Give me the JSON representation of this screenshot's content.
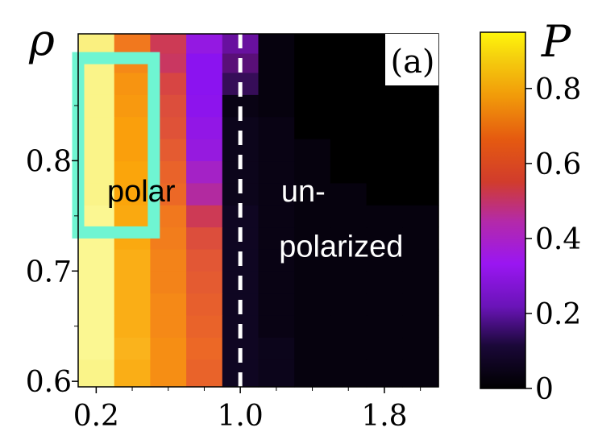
{
  "chart_data": {
    "type": "heatmap",
    "panel_label": "(a)",
    "ylabel": "ρ",
    "colorbar_label": "P",
    "x_ticks": [
      "0.2",
      "1.0",
      "1.8"
    ],
    "y_ticks": [
      "0.6",
      "0.7",
      "0.8"
    ],
    "colorbar_ticks": [
      "0",
      "0.2",
      "0.4",
      "0.6",
      "0.8"
    ],
    "x_tick_values": [
      0.2,
      1.0,
      1.8
    ],
    "y_tick_values": [
      0.6,
      0.7,
      0.8
    ],
    "colorbar_tick_values": [
      0,
      0.2,
      0.4,
      0.6,
      0.8
    ],
    "xlim": [
      0.1,
      2.1
    ],
    "ylim": [
      0.595,
      0.915
    ],
    "clim": [
      0,
      0.95
    ],
    "x_centers": [
      0.2,
      0.4,
      0.6,
      0.8,
      1.0,
      1.2,
      1.4,
      1.6,
      1.8,
      2.0
    ],
    "y_centers": [
      0.61,
      0.63,
      0.65,
      0.67,
      0.69,
      0.71,
      0.73,
      0.75,
      0.77,
      0.79,
      0.81,
      0.83,
      0.85,
      0.87,
      0.89,
      0.905
    ],
    "values": [
      [
        0.92,
        0.76,
        0.7,
        0.62,
        0.05,
        0.04,
        0.02,
        0.02,
        0.02,
        0.02
      ],
      [
        0.93,
        0.77,
        0.7,
        0.63,
        0.05,
        0.04,
        0.02,
        0.02,
        0.02,
        0.02
      ],
      [
        0.93,
        0.76,
        0.69,
        0.62,
        0.05,
        0.03,
        0.02,
        0.02,
        0.02,
        0.02
      ],
      [
        0.93,
        0.76,
        0.69,
        0.61,
        0.05,
        0.03,
        0.02,
        0.02,
        0.02,
        0.02
      ],
      [
        0.93,
        0.76,
        0.68,
        0.6,
        0.05,
        0.03,
        0.02,
        0.02,
        0.02,
        0.02
      ],
      [
        0.93,
        0.76,
        0.68,
        0.59,
        0.05,
        0.03,
        0.02,
        0.02,
        0.02,
        0.02
      ],
      [
        0.93,
        0.75,
        0.67,
        0.57,
        0.05,
        0.03,
        0.02,
        0.02,
        0.02,
        0.02
      ],
      [
        0.93,
        0.75,
        0.66,
        0.52,
        0.05,
        0.03,
        0.02,
        0.02,
        0.02,
        0.02
      ],
      [
        0.92,
        0.74,
        0.63,
        0.46,
        0.04,
        0.03,
        0.02,
        0.02,
        0.0,
        0.0
      ],
      [
        0.92,
        0.74,
        0.62,
        0.43,
        0.04,
        0.03,
        0.02,
        0.0,
        0.0,
        0.0
      ],
      [
        0.92,
        0.73,
        0.6,
        0.38,
        0.04,
        0.03,
        0.02,
        0.0,
        0.0,
        0.0
      ],
      [
        0.92,
        0.73,
        0.58,
        0.36,
        0.04,
        0.03,
        0.0,
        0.0,
        0.0,
        0.0
      ],
      [
        0.92,
        0.72,
        0.57,
        0.34,
        0.03,
        0.02,
        0.0,
        0.0,
        0.0,
        0.0
      ],
      [
        0.92,
        0.71,
        0.55,
        0.33,
        0.15,
        0.02,
        0.0,
        0.0,
        0.0,
        0.0
      ],
      [
        0.92,
        0.69,
        0.51,
        0.33,
        0.22,
        0.02,
        0.0,
        0.0,
        0.0,
        0.0
      ],
      [
        0.91,
        0.66,
        0.52,
        0.37,
        0.25,
        0.02,
        0.0,
        0.0,
        0.0,
        0.0
      ]
    ],
    "boundary_x": 1.0,
    "regions": [
      {
        "label": "polar",
        "x": 0.45,
        "y": 0.763
      },
      {
        "label": "un-",
        "x": 1.35,
        "y": 0.763
      },
      {
        "label": "polarized",
        "x": 1.56,
        "y": 0.713
      }
    ],
    "highlight_box": {
      "x_range": [
        0.1,
        0.52
      ],
      "y_range": [
        0.735,
        0.893
      ],
      "color": "#6ff5d2"
    },
    "colormap": [
      "#000000",
      "#1f0c48",
      "#550f6d",
      "#8811f5",
      "#a020d0",
      "#d13c4b",
      "#ed6925",
      "#fba40a",
      "#f6d746",
      "#fcffa4"
    ]
  }
}
